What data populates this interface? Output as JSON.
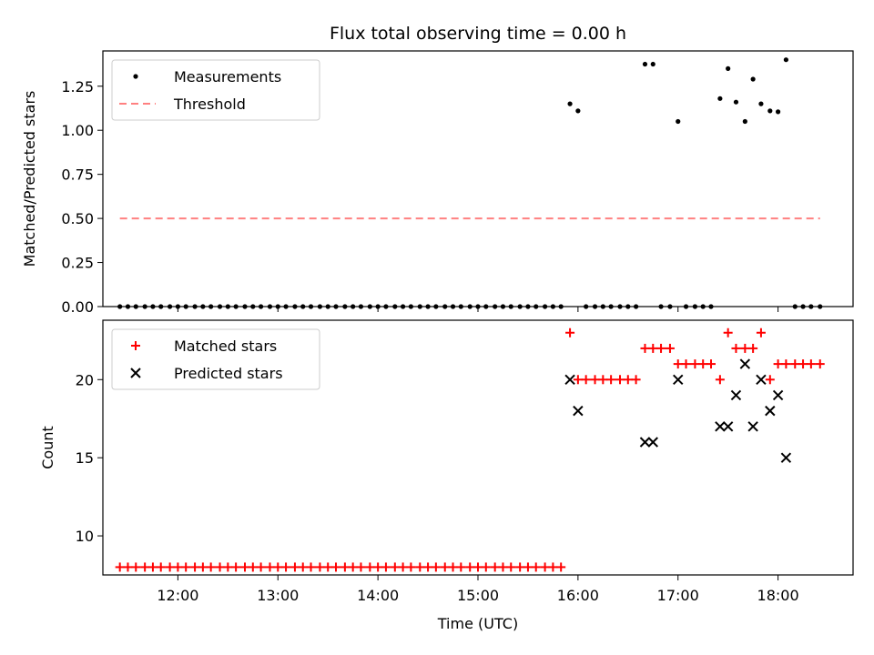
{
  "chart_data": [
    {
      "type": "scatter",
      "title": "Flux total observing time = 0.00 h",
      "ylabel": "Matched/Predicted stars",
      "ylim": [
        0,
        1.45
      ],
      "xlim": [
        11.25,
        18.75
      ],
      "yticks": [
        0.0,
        0.25,
        0.5,
        0.75,
        1.0,
        1.25
      ],
      "ytick_labels": [
        "0.00",
        "0.25",
        "0.50",
        "0.75",
        "1.00",
        "1.25"
      ],
      "legend_position": "upper-left",
      "series": [
        {
          "name": "Measurements",
          "marker": "dot",
          "color": "#000000",
          "x": [
            11.42,
            11.5,
            11.58,
            11.67,
            11.75,
            11.83,
            11.92,
            12.0,
            12.08,
            12.17,
            12.25,
            12.33,
            12.42,
            12.5,
            12.58,
            12.67,
            12.75,
            12.83,
            12.92,
            13.0,
            13.08,
            13.17,
            13.25,
            13.33,
            13.42,
            13.5,
            13.58,
            13.67,
            13.75,
            13.83,
            13.92,
            14.0,
            14.08,
            14.17,
            14.25,
            14.33,
            14.42,
            14.5,
            14.58,
            14.67,
            14.75,
            14.83,
            14.92,
            15.0,
            15.08,
            15.17,
            15.25,
            15.33,
            15.42,
            15.5,
            15.58,
            15.67,
            15.75,
            15.83,
            15.92,
            16.0,
            16.08,
            16.17,
            16.25,
            16.33,
            16.42,
            16.5,
            16.58,
            16.67,
            16.75,
            16.83,
            16.92,
            17.0,
            17.08,
            17.17,
            17.25,
            17.33,
            17.42,
            17.5,
            17.58,
            17.67,
            17.75,
            17.83,
            17.92,
            18.0,
            18.08,
            18.17,
            18.25,
            18.33,
            18.42
          ],
          "y": [
            0,
            0,
            0,
            0,
            0,
            0,
            0,
            0,
            0,
            0,
            0,
            0,
            0,
            0,
            0,
            0,
            0,
            0,
            0,
            0,
            0,
            0,
            0,
            0,
            0,
            0,
            0,
            0,
            0,
            0,
            0,
            0,
            0,
            0,
            0,
            0,
            0,
            0,
            0,
            0,
            0,
            0,
            0,
            0,
            0,
            0,
            0,
            0,
            0,
            0,
            0,
            0,
            0,
            0,
            1.15,
            1.11,
            0,
            0,
            0,
            0,
            0,
            0,
            0,
            1.375,
            1.375,
            0,
            0,
            1.05,
            0,
            0,
            0,
            0,
            1.18,
            1.35,
            1.16,
            1.05,
            1.29,
            1.15,
            1.11,
            1.105,
            1.4,
            0,
            0,
            0,
            0
          ]
        },
        {
          "name": "Threshold",
          "type": "line",
          "style": "dashed",
          "color": "#ff8080",
          "x": [
            11.42,
            18.42
          ],
          "y": [
            0.5,
            0.5
          ]
        }
      ]
    },
    {
      "type": "scatter",
      "xlabel": "Time (UTC)",
      "ylabel": "Count",
      "ylim": [
        7.5,
        23.8
      ],
      "xlim": [
        11.25,
        18.75
      ],
      "yticks": [
        10,
        15,
        20
      ],
      "ytick_labels": [
        "10",
        "15",
        "20"
      ],
      "xticks": [
        12,
        13,
        14,
        15,
        16,
        17,
        18
      ],
      "xtick_labels": [
        "12:00",
        "13:00",
        "14:00",
        "15:00",
        "16:00",
        "17:00",
        "18:00"
      ],
      "legend_position": "upper-left",
      "series": [
        {
          "name": "Matched stars",
          "marker": "plus",
          "color": "#ff0000",
          "x": [
            11.42,
            11.5,
            11.58,
            11.67,
            11.75,
            11.83,
            11.92,
            12.0,
            12.08,
            12.17,
            12.25,
            12.33,
            12.42,
            12.5,
            12.58,
            12.67,
            12.75,
            12.83,
            12.92,
            13.0,
            13.08,
            13.17,
            13.25,
            13.33,
            13.42,
            13.5,
            13.58,
            13.67,
            13.75,
            13.83,
            13.92,
            14.0,
            14.08,
            14.17,
            14.25,
            14.33,
            14.42,
            14.5,
            14.58,
            14.67,
            14.75,
            14.83,
            14.92,
            15.0,
            15.08,
            15.17,
            15.25,
            15.33,
            15.42,
            15.5,
            15.58,
            15.67,
            15.75,
            15.83,
            15.92,
            16.0,
            16.08,
            16.17,
            16.25,
            16.33,
            16.42,
            16.5,
            16.58,
            16.67,
            16.75,
            16.83,
            16.92,
            17.0,
            17.08,
            17.17,
            17.25,
            17.33,
            17.42,
            17.5,
            17.58,
            17.67,
            17.75,
            17.83,
            17.92,
            18.0,
            18.08,
            18.17,
            18.25,
            18.33,
            18.42
          ],
          "y": [
            8,
            8,
            8,
            8,
            8,
            8,
            8,
            8,
            8,
            8,
            8,
            8,
            8,
            8,
            8,
            8,
            8,
            8,
            8,
            8,
            8,
            8,
            8,
            8,
            8,
            8,
            8,
            8,
            8,
            8,
            8,
            8,
            8,
            8,
            8,
            8,
            8,
            8,
            8,
            8,
            8,
            8,
            8,
            8,
            8,
            8,
            8,
            8,
            8,
            8,
            8,
            8,
            8,
            8,
            23,
            20,
            20,
            20,
            20,
            20,
            20,
            20,
            20,
            22,
            22,
            22,
            22,
            21,
            21,
            21,
            21,
            21,
            20,
            23,
            22,
            22,
            22,
            23,
            20,
            21,
            21,
            21,
            21,
            21,
            21
          ]
        },
        {
          "name": "Predicted stars",
          "marker": "x",
          "color": "#000000",
          "x": [
            15.92,
            16.0,
            16.67,
            16.75,
            17.0,
            17.42,
            17.5,
            17.58,
            17.67,
            17.75,
            17.83,
            17.92,
            18.0,
            18.08
          ],
          "y": [
            20,
            18,
            16,
            16,
            20,
            17,
            17,
            19,
            21,
            17,
            20,
            18,
            19,
            15
          ]
        }
      ]
    }
  ]
}
